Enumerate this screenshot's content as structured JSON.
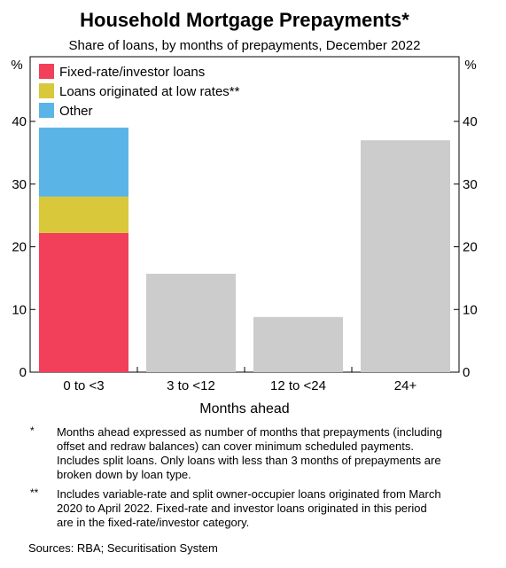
{
  "chart_data": {
    "type": "bar",
    "title": "Household Mortgage Prepayments*",
    "subtitle": "Share of loans, by months of prepayments, December 2022",
    "xlabel": "Months ahead",
    "ylabel_left": "%",
    "ylabel_right": "%",
    "ylim": [
      0,
      40
    ],
    "yticks": [
      0,
      10,
      20,
      30,
      40
    ],
    "grid": false,
    "legend_position": "top-left",
    "categories": [
      "0 to <3",
      "3 to <12",
      "12 to <24",
      "24+"
    ],
    "series": [
      {
        "name": "Fixed-rate/investor loans",
        "color": "#f2405a",
        "values": [
          22.2,
          null,
          null,
          null
        ]
      },
      {
        "name": "Loans originated at low rates**",
        "color": "#d9c83a",
        "values": [
          5.8,
          null,
          null,
          null
        ]
      },
      {
        "name": "Other",
        "color": "#5ab4e5",
        "values": [
          11.0,
          null,
          null,
          null
        ]
      },
      {
        "name": "",
        "color": "#cccccc",
        "values": [
          null,
          15.7,
          8.8,
          37.0
        ]
      }
    ]
  },
  "notes": [
    {
      "marker": "*",
      "text": "Months ahead expressed as number of months that prepayments (including offset and redraw balances) can cover minimum scheduled payments. Includes split loans. Only loans with less than 3 months of prepayments are broken down by loan type."
    },
    {
      "marker": "**",
      "text": "Includes variable-rate and split owner-occupier loans originated from March 2020 to April 2022. Fixed-rate and investor loans originated in this period are in the fixed-rate/investor category."
    }
  ],
  "source": "Sources: RBA; Securitisation System"
}
